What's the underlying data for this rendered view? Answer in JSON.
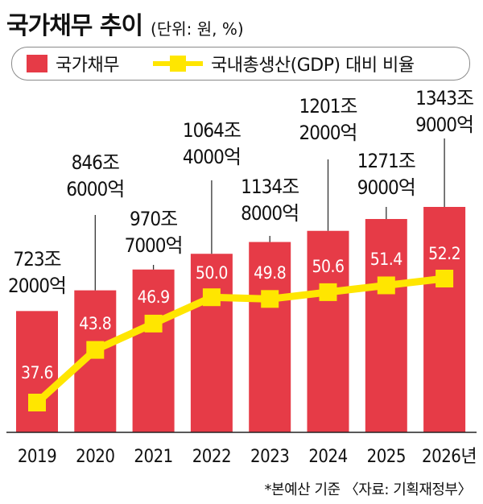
{
  "header": {
    "title": "국가채무 추이",
    "unit": "(단위: 원, %)"
  },
  "legend": {
    "bar_label": "국가채무",
    "line_label": "국내총생산(GDP) 대비 비율"
  },
  "footnote": "*본예산 기준 〈자료: 기획재정부〉",
  "colors": {
    "bar": "#e63b47",
    "line": "#ffe600",
    "leader": "#333333",
    "axis": "#222222"
  },
  "chart_data": {
    "type": "bar",
    "categories": [
      "2019",
      "2020",
      "2021",
      "2022",
      "2023",
      "2024",
      "2025",
      "2026년"
    ],
    "values": [
      723.2,
      846.6,
      970.7,
      1064.4,
      1134.8,
      1201.2,
      1271.9,
      1343.9
    ],
    "value_labels": [
      [
        "723조",
        "2000억"
      ],
      [
        "846조",
        "6000억"
      ],
      [
        "970조",
        "7000억"
      ],
      [
        "1064조",
        "4000억"
      ],
      [
        "1134조",
        "8000억"
      ],
      [
        "1201조",
        "2000억"
      ],
      [
        "1271조",
        "9000억"
      ],
      [
        "1343조",
        "9000억"
      ]
    ],
    "line_series": {
      "values": [
        37.6,
        43.8,
        46.9,
        50.0,
        49.8,
        50.6,
        51.4,
        52.2
      ],
      "labels": [
        "37.6",
        "43.8",
        "46.9",
        "50.0",
        "49.8",
        "50.6",
        "51.4",
        "52.2"
      ]
    }
  }
}
